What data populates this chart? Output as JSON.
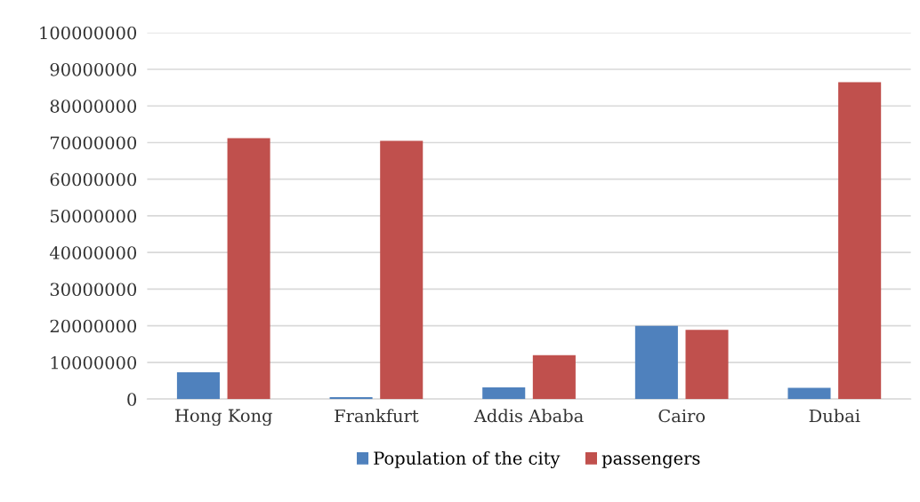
{
  "chart_data": {
    "type": "bar",
    "categories": [
      "Hong Kong",
      "Frankfurt",
      "Addis Ababa",
      "Cairo",
      "Dubai"
    ],
    "series": [
      {
        "name": "Population of the city",
        "color": "#4f81bd",
        "values": [
          7300000,
          500000,
          3200000,
          20000000,
          3100000
        ]
      },
      {
        "name": "passengers",
        "color": "#c0504d",
        "values": [
          71200000,
          70500000,
          12000000,
          18900000,
          86500000
        ]
      }
    ],
    "ylim": [
      0,
      100000000
    ],
    "yticks": [
      0,
      10000000,
      20000000,
      30000000,
      40000000,
      50000000,
      60000000,
      70000000,
      80000000,
      90000000,
      100000000
    ],
    "grid": "y",
    "legend": "bottom"
  }
}
